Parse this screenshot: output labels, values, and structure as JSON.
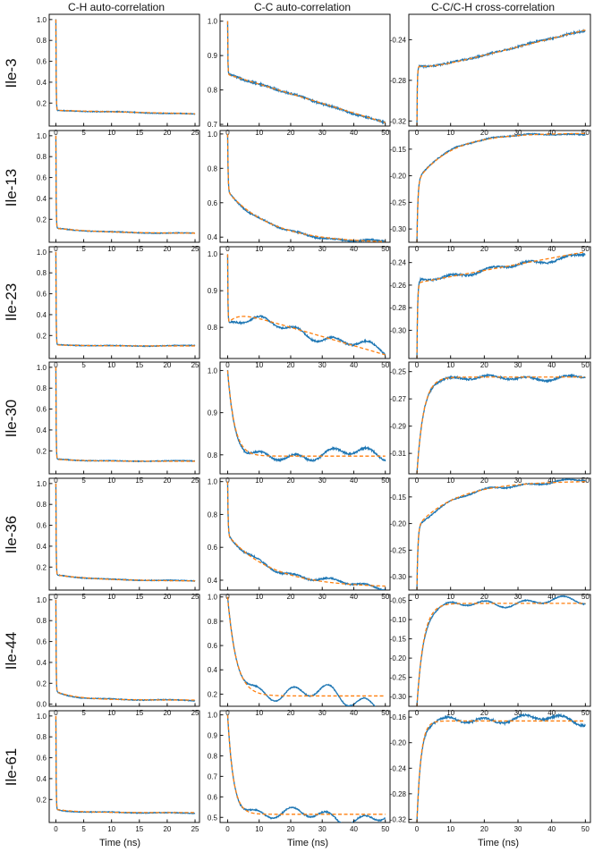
{
  "columns": [
    {
      "title": "C-H auto-correlation",
      "xlabel": "Time (ns)",
      "xticks": [
        0,
        5,
        10,
        15,
        20,
        25
      ],
      "xlim": [
        -1.2,
        25.8
      ]
    },
    {
      "title": "C-C auto-correlation",
      "xlabel": "Time (ns)",
      "xticks": [
        0,
        10,
        20,
        30,
        40,
        50
      ],
      "xlim": [
        -2.4,
        51.5
      ]
    },
    {
      "title": "C-C/C-H cross-correlation",
      "xlabel": "Time (ns)",
      "xticks": [
        0,
        10,
        20,
        30,
        40,
        50
      ],
      "xlim": [
        -2.4,
        51.5
      ]
    }
  ],
  "rows": [
    "Ile-3",
    "Ile-13",
    "Ile-23",
    "Ile-30",
    "Ile-36",
    "Ile-44",
    "Ile-61"
  ],
  "colors": {
    "data": "#1f77b4",
    "fit": "#ff7f0e",
    "axis": "#111111"
  },
  "chart_data": [
    {
      "row": "Ile-3",
      "type": "line",
      "xlabel": "Time (ns)",
      "series": [
        {
          "col": 0,
          "xmax": 25,
          "ylim": [
            -0.02,
            1.05
          ],
          "yticks": [
            0.2,
            0.4,
            0.6,
            0.8,
            1.0
          ],
          "tick_fmt": "1f",
          "y0": 1.0,
          "plateau": 0.13,
          "tau": 0.05,
          "slope": -0.0013,
          "noise": 0.003,
          "wig": [
            0.2,
            0.4,
            0.6
          ],
          "slow": null
        },
        {
          "col": 1,
          "xmax": 50,
          "ylim": [
            0.695,
            1.02
          ],
          "yticks": [
            0.7,
            0.8,
            0.9,
            1.0
          ],
          "tick_fmt": "1f",
          "y0": 1.0,
          "plateau": 0.845,
          "tau": 0.08,
          "slope": -0.0028,
          "noise": 0.0025,
          "wig": [
            0.35,
            0.6,
            0.8
          ],
          "slow": null
        },
        {
          "col": 2,
          "xmax": 50,
          "ylim": [
            -0.325,
            -0.215
          ],
          "yticks": [
            -0.32,
            -0.28,
            -0.24
          ],
          "tick_fmt": "2f",
          "y0": -0.325,
          "plateau": -0.272,
          "tau": 0.12,
          "slope": 0.00083,
          "noise": 0.0008,
          "wig": [
            0.25,
            0.5,
            0.8
          ],
          "slow": [
            0.006,
            5
          ]
        }
      ]
    },
    {
      "row": "Ile-13",
      "type": "line",
      "xlabel": "Time (ns)",
      "series": [
        {
          "col": 0,
          "xmax": 25,
          "ylim": [
            -0.02,
            1.05
          ],
          "yticks": [
            0.2,
            0.4,
            0.6,
            0.8,
            1.0
          ],
          "tick_fmt": "1f",
          "y0": 1.0,
          "plateau": 0.065,
          "tau": 0.05,
          "slope": 0,
          "noise": 0.003,
          "wig": [
            0.2,
            0.4,
            0.6
          ],
          "slow": [
            0.05,
            8
          ]
        },
        {
          "col": 1,
          "xmax": 50,
          "ylim": [
            0.37,
            1.02
          ],
          "yticks": [
            0.4,
            0.6,
            0.8,
            1.0
          ],
          "tick_fmt": "1f",
          "y0": 1.0,
          "plateau": 0.365,
          "tau": 0.15,
          "slope": 0,
          "noise": 0.004,
          "wig": [
            0.6,
            1.0,
            1.4
          ],
          "slow": [
            0.3,
            14
          ]
        },
        {
          "col": 2,
          "xmax": 50,
          "ylim": [
            -0.325,
            -0.115
          ],
          "yticks": [
            -0.3,
            -0.25,
            -0.2,
            -0.15
          ],
          "tick_fmt": "2f",
          "y0": -0.325,
          "plateau": -0.12,
          "tau": 0.3,
          "slope": 0,
          "noise": 0.001,
          "wig": [
            0.4,
            0.8,
            1.2
          ],
          "slow": [
            -0.09,
            10
          ]
        }
      ]
    },
    {
      "row": "Ile-23",
      "type": "line",
      "xlabel": "Time (ns)",
      "series": [
        {
          "col": 0,
          "xmax": 25,
          "ylim": [
            -0.02,
            1.05
          ],
          "yticks": [
            0.2,
            0.4,
            0.6,
            0.8,
            1.0
          ],
          "tick_fmt": "1f",
          "y0": 1.0,
          "plateau": 0.1,
          "tau": 0.05,
          "slope": 0,
          "noise": 0.003,
          "wig": [
            0.2,
            0.4,
            0.6
          ],
          "slow": [
            0.01,
            6
          ]
        },
        {
          "col": 1,
          "xmax": 50,
          "ylim": [
            0.715,
            1.02
          ],
          "yticks": [
            0.8,
            0.9,
            1.0
          ],
          "tick_fmt": "1f",
          "y0": 1.0,
          "plateau": 0.85,
          "tau": 0.1,
          "slope": -0.0025,
          "noise": 0.002,
          "wig": [
            3.0,
            5.0,
            6.0
          ],
          "slow": [
            -0.04,
            3
          ]
        },
        {
          "col": 2,
          "xmax": 50,
          "ylim": [
            -0.325,
            -0.226
          ],
          "yticks": [
            -0.3,
            -0.28,
            -0.26,
            -0.24
          ],
          "tick_fmt": "2f",
          "y0": -0.325,
          "plateau": -0.258,
          "tau": 0.2,
          "slope": 0.00055,
          "noise": 0.0008,
          "wig": [
            1.5,
            2.5,
            3.5
          ],
          "slow": [
            0.0,
            3
          ]
        }
      ]
    },
    {
      "row": "Ile-30",
      "type": "line",
      "xlabel": "Time (ns)",
      "series": [
        {
          "col": 0,
          "xmax": 25,
          "ylim": [
            -0.02,
            1.05
          ],
          "yticks": [
            0.2,
            0.4,
            0.6,
            0.8,
            1.0
          ],
          "tick_fmt": "1f",
          "y0": 1.0,
          "plateau": 0.1,
          "tau": 0.05,
          "slope": 0,
          "noise": 0.003,
          "wig": [
            0.2,
            0.4,
            0.6
          ],
          "slow": [
            0.02,
            5
          ]
        },
        {
          "col": 1,
          "xmax": 50,
          "ylim": [
            0.755,
            1.02
          ],
          "yticks": [
            0.8,
            0.9,
            1.0
          ],
          "tick_fmt": "1f",
          "y0": 1.0,
          "plateau": 0.797,
          "tau": 2.2,
          "slope": 0,
          "noise": 0.002,
          "wig": [
            3.5,
            5.5,
            7.0
          ],
          "slow": null
        },
        {
          "col": 2,
          "xmax": 50,
          "ylim": [
            -0.325,
            -0.243
          ],
          "yticks": [
            -0.31,
            -0.29,
            -0.27,
            -0.25
          ],
          "tick_fmt": "2f",
          "y0": -0.325,
          "plateau": -0.254,
          "tau": 2.0,
          "slope": 0,
          "noise": 0.0006,
          "wig": [
            1.5,
            2.5,
            3.0
          ],
          "slow": null
        }
      ]
    },
    {
      "row": "Ile-36",
      "type": "line",
      "xlabel": "Time (ns)",
      "series": [
        {
          "col": 0,
          "xmax": 25,
          "ylim": [
            -0.02,
            1.05
          ],
          "yticks": [
            0.2,
            0.4,
            0.6,
            0.8,
            1.0
          ],
          "tick_fmt": "1f",
          "y0": 1.0,
          "plateau": 0.065,
          "tau": 0.05,
          "slope": 0,
          "noise": 0.003,
          "wig": [
            0.2,
            0.4,
            0.6
          ],
          "slow": [
            0.06,
            8
          ]
        },
        {
          "col": 1,
          "xmax": 50,
          "ylim": [
            0.34,
            1.02
          ],
          "yticks": [
            0.4,
            0.6,
            0.8,
            1.0
          ],
          "tick_fmt": "1f",
          "y0": 1.0,
          "plateau": 0.355,
          "tau": 0.15,
          "slope": 0,
          "noise": 0.004,
          "wig": [
            1.5,
            2.5,
            3.5
          ],
          "slow": [
            0.32,
            14
          ]
        },
        {
          "col": 2,
          "xmax": 50,
          "ylim": [
            -0.325,
            -0.115
          ],
          "yticks": [
            -0.3,
            -0.25,
            -0.2,
            -0.15
          ],
          "tick_fmt": "2f",
          "y0": -0.325,
          "plateau": -0.12,
          "tau": 0.3,
          "slope": 0,
          "noise": 0.001,
          "wig": [
            1.0,
            1.8,
            2.5
          ],
          "slow": [
            -0.085,
            12
          ]
        }
      ]
    },
    {
      "row": "Ile-44",
      "type": "line",
      "xlabel": "Time (ns)",
      "series": [
        {
          "col": 0,
          "xmax": 25,
          "ylim": [
            -0.02,
            1.05
          ],
          "yticks": [
            0.0,
            0.2,
            0.4,
            0.6,
            0.8,
            1.0
          ],
          "tick_fmt": "1f",
          "y0": 1.0,
          "plateau": 0.04,
          "tau": 0.05,
          "slope": 0,
          "noise": 0.003,
          "wig": [
            0.4,
            0.8,
            1.0
          ],
          "slow": [
            0.08,
            4
          ]
        },
        {
          "col": 1,
          "xmax": 50,
          "ylim": [
            0.1,
            1.02
          ],
          "yticks": [
            0.2,
            0.4,
            0.6,
            0.8,
            1.0
          ],
          "tick_fmt": "1f",
          "y0": 1.0,
          "plateau": 0.185,
          "tau": 2.8,
          "slope": 0,
          "noise": 0.004,
          "wig": [
            6.0,
            9.0,
            11.0
          ],
          "slow": null
        },
        {
          "col": 2,
          "xmax": 50,
          "ylim": [
            -0.325,
            -0.035
          ],
          "yticks": [
            -0.3,
            -0.25,
            -0.2,
            -0.15,
            -0.1,
            -0.05
          ],
          "tick_fmt": "2f",
          "y0": -0.325,
          "plateau": -0.058,
          "tau": 2.0,
          "slope": 0,
          "noise": 0.0012,
          "wig": [
            2.5,
            4.0,
            5.0
          ],
          "slow": null
        }
      ]
    },
    {
      "row": "Ile-61",
      "type": "line",
      "xlabel": "Time (ns)",
      "series": [
        {
          "col": 0,
          "xmax": 25,
          "ylim": [
            -0.02,
            1.05
          ],
          "yticks": [
            0.2,
            0.4,
            0.6,
            0.8,
            1.0
          ],
          "tick_fmt": "1f",
          "y0": 1.0,
          "plateau": 0.075,
          "tau": 0.05,
          "slope": 0,
          "noise": 0.003,
          "wig": [
            0.3,
            0.6,
            0.8
          ],
          "slow": [
            0.03,
            4
          ]
        },
        {
          "col": 1,
          "xmax": 50,
          "ylim": [
            0.475,
            1.02
          ],
          "yticks": [
            0.5,
            0.6,
            0.7,
            0.8,
            0.9,
            1.0
          ],
          "tick_fmt": "1f",
          "y0": 1.0,
          "plateau": 0.515,
          "tau": 1.8,
          "slope": 0,
          "noise": 0.003,
          "wig": [
            4.0,
            6.0,
            8.0
          ],
          "slow": null
        },
        {
          "col": 2,
          "xmax": 50,
          "ylim": [
            -0.325,
            -0.15
          ],
          "yticks": [
            -0.32,
            -0.28,
            -0.24,
            -0.2,
            -0.16
          ],
          "tick_fmt": "2f",
          "y0": -0.325,
          "plateau": -0.166,
          "tau": 1.2,
          "slope": 0,
          "noise": 0.0015,
          "wig": [
            2.5,
            4.0,
            6.0
          ],
          "slow": null
        }
      ]
    }
  ]
}
